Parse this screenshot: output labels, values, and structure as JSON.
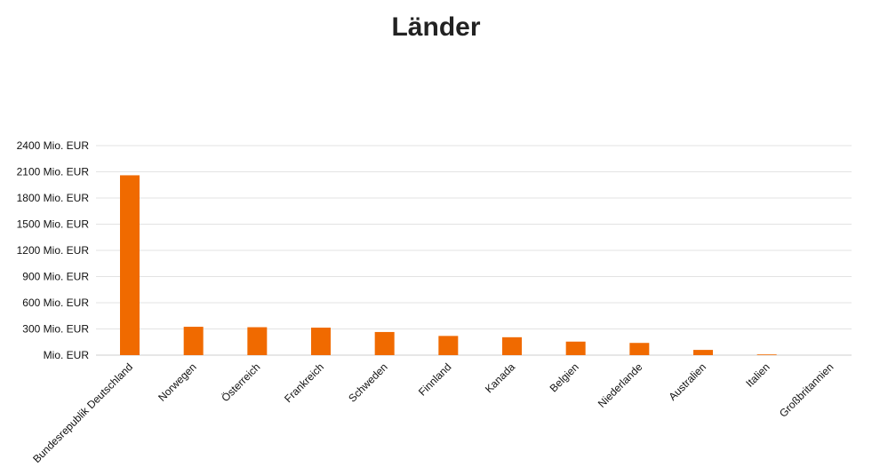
{
  "chart_data": {
    "type": "bar",
    "title": "Länder",
    "xlabel": "",
    "ylabel": "",
    "categories": [
      "Bundesrepublik Deutschland",
      "Norwegen",
      "Österreich",
      "Frankreich",
      "Schweden",
      "Finnland",
      "Kanada",
      "Belgien",
      "Niederlande",
      "Australien",
      "Italien",
      "Großbritannien"
    ],
    "values": [
      2060,
      325,
      320,
      315,
      265,
      220,
      205,
      155,
      140,
      60,
      8,
      0
    ],
    "ylim": [
      0,
      2400
    ],
    "y_ticks": [
      0,
      300,
      600,
      900,
      1200,
      1500,
      1800,
      2100,
      2400
    ],
    "y_tick_labels": [
      "Mio. EUR",
      "300 Mio. EUR",
      "600 Mio. EUR",
      "900 Mio. EUR",
      "1200 Mio. EUR",
      "1500 Mio. EUR",
      "1800 Mio. EUR",
      "2100 Mio. EUR",
      "2400 Mio. EUR"
    ],
    "grid": true,
    "bar_color": "#f06a00",
    "legend": "none"
  }
}
